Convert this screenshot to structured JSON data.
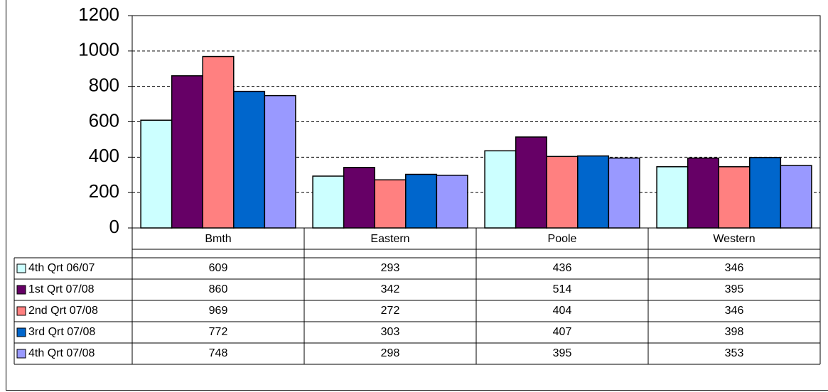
{
  "chart_data": {
    "type": "bar",
    "categories": [
      "Bmth",
      "Eastern",
      "Poole",
      "Western"
    ],
    "series": [
      {
        "name": "4th Qrt 06/07",
        "color": "#ccffff",
        "values": [
          609,
          293,
          436,
          346
        ]
      },
      {
        "name": "1st Qrt 07/08",
        "color": "#660066",
        "values": [
          860,
          342,
          514,
          395
        ]
      },
      {
        "name": "2nd Qrt 07/08",
        "color": "#ff8080",
        "values": [
          969,
          272,
          404,
          346
        ]
      },
      {
        "name": "3rd Qrt 07/08",
        "color": "#0066cc",
        "values": [
          772,
          303,
          407,
          398
        ]
      },
      {
        "name": "4th Qrt 07/08",
        "color": "#9999ff",
        "values": [
          748,
          298,
          395,
          353
        ]
      }
    ],
    "ylim": [
      0,
      1200
    ],
    "yticks": [
      0,
      200,
      400,
      600,
      800,
      1000,
      1200
    ],
    "grid": true
  }
}
